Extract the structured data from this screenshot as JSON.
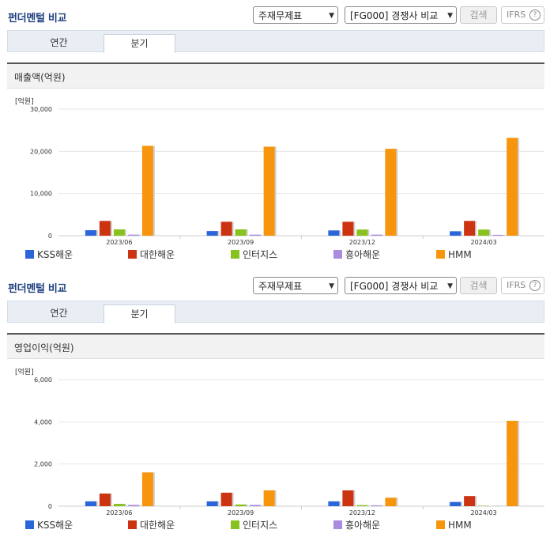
{
  "sections": [
    {
      "title": "펀더멘털 비교",
      "select1": "주재무제표",
      "select2": "[FG000] 경쟁사 비교",
      "search_button": "검색",
      "ifrs": "IFRS",
      "ifrs_help": "?",
      "tabs": [
        "연간",
        "분기"
      ],
      "active_tab": 1,
      "chart_title": "매출액(억원)",
      "unit": "[억원]"
    },
    {
      "title": "펀더멘털 비교",
      "select1": "주재무제표",
      "select2": "[FG000] 경쟁사 비교",
      "search_button": "검색",
      "ifrs": "IFRS",
      "ifrs_help": "?",
      "tabs": [
        "연간",
        "분기"
      ],
      "active_tab": 1,
      "chart_title": "영업이익(억원)",
      "unit": "[억원]"
    }
  ],
  "chart_data": [
    {
      "type": "bar",
      "title": "매출액(억원)",
      "ylabel": "[억원]",
      "categories": [
        "2023/06",
        "2023/09",
        "2023/12",
        "2024/03"
      ],
      "ylim": [
        0,
        30000
      ],
      "yticks": [
        0,
        10000,
        20000,
        30000
      ],
      "ytick_labels": [
        "0",
        "10,000",
        "20,000",
        "30,000"
      ],
      "grid": true,
      "series": [
        {
          "name": "KSS해운",
          "color": "#2a66d9",
          "values": [
            1300,
            1100,
            1250,
            1050
          ]
        },
        {
          "name": "대한해운",
          "color": "#cc3311",
          "values": [
            3500,
            3300,
            3300,
            3500
          ]
        },
        {
          "name": "인터지스",
          "color": "#88c21e",
          "values": [
            1500,
            1500,
            1450,
            1450
          ]
        },
        {
          "name": "흥아해운",
          "color": "#a98be0",
          "values": [
            250,
            250,
            250,
            200
          ]
        },
        {
          "name": "HMM",
          "color": "#f7950d",
          "values": [
            21300,
            21100,
            20600,
            23200
          ]
        }
      ]
    },
    {
      "type": "bar",
      "title": "영업이익(억원)",
      "ylabel": "[억원]",
      "categories": [
        "2023/06",
        "2023/09",
        "2023/12",
        "2024/03"
      ],
      "ylim": [
        0,
        6000
      ],
      "yticks": [
        0,
        2000,
        4000,
        6000
      ],
      "ytick_labels": [
        "0",
        "2,000",
        "4,000",
        "6,000"
      ],
      "grid": true,
      "series": [
        {
          "name": "KSS해운",
          "color": "#2a66d9",
          "values": [
            230,
            230,
            230,
            200
          ]
        },
        {
          "name": "대한해운",
          "color": "#cc3311",
          "values": [
            600,
            640,
            750,
            480
          ]
        },
        {
          "name": "인터지스",
          "color": "#88c21e",
          "values": [
            110,
            80,
            50,
            20
          ]
        },
        {
          "name": "흥아해운",
          "color": "#a98be0",
          "values": [
            60,
            60,
            40,
            10
          ]
        },
        {
          "name": "HMM",
          "color": "#f7950d",
          "values": [
            1600,
            750,
            400,
            4050
          ]
        }
      ]
    }
  ]
}
